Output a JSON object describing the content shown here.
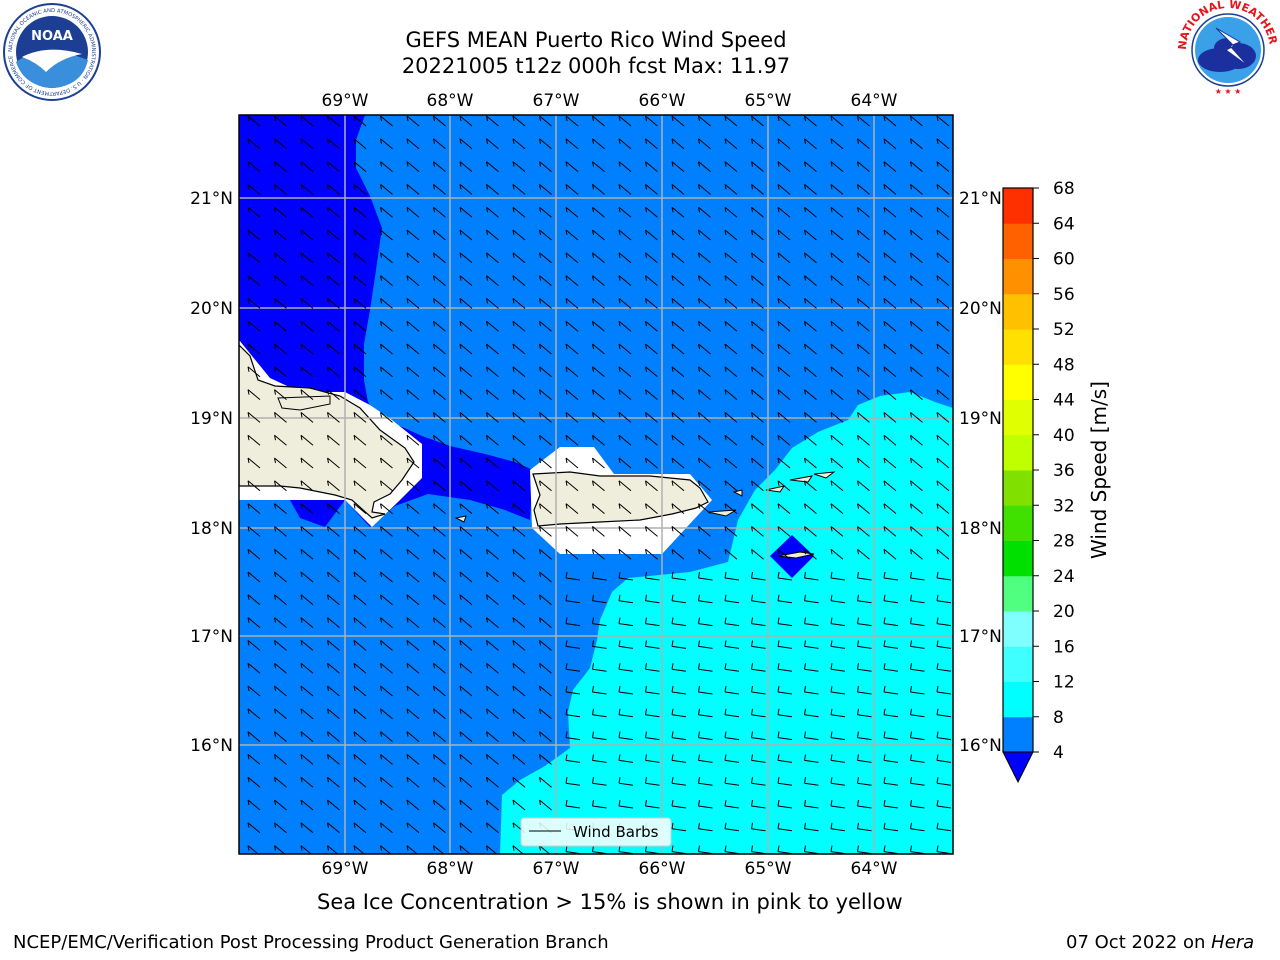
{
  "header": {
    "title_line1": "GEFS MEAN Puerto Rico Wind Speed",
    "title_line2": "20221005 t12z 000h fcst   Max: 11.97"
  },
  "logos": {
    "left": {
      "name": "noaa-logo",
      "text": "NOAA",
      "ring_text": "NATIONAL OCEANIC AND ATMOSPHERIC ADMINISTRATION · U.S. DEPARTMENT OF COMMERCE"
    },
    "right": {
      "name": "nws-logo",
      "ring_text": "NATIONAL WEATHER SERVICE"
    }
  },
  "map": {
    "lon_labels": [
      "69°W",
      "68°W",
      "67°W",
      "66°W",
      "65°W",
      "64°W"
    ],
    "lat_labels": [
      "21°N",
      "20°N",
      "19°N",
      "18°N",
      "17°N",
      "16°N"
    ],
    "legend_label": "Wind Barbs",
    "land_color": "#efeddc",
    "colors": {
      "dark_blue": "#0000ff",
      "mid_blue": "#0080ff",
      "cyan": "#00ffff"
    }
  },
  "colorbar": {
    "label": "Wind Speed [m/s]",
    "ticks": [
      "4",
      "8",
      "12",
      "16",
      "20",
      "24",
      "28",
      "32",
      "36",
      "40",
      "44",
      "48",
      "52",
      "56",
      "60",
      "64",
      "68"
    ],
    "colors": [
      "#0080ff",
      "#00ffff",
      "#40ffff",
      "#80ffff",
      "#50ff80",
      "#00e000",
      "#40e000",
      "#80e000",
      "#c0ff00",
      "#e0ff00",
      "#ffff00",
      "#ffe000",
      "#ffc000",
      "#ff9000",
      "#ff6000",
      "#ff3000"
    ],
    "under_color": "#0000ff"
  },
  "caption": "Sea Ice Concentration > 15% is shown in pink to yellow",
  "footer": {
    "left": "NCEP/EMC/Verification Post Processing Product Generation Branch",
    "right_prefix": "07 Oct 2022 on ",
    "right_host": "Hera"
  }
}
